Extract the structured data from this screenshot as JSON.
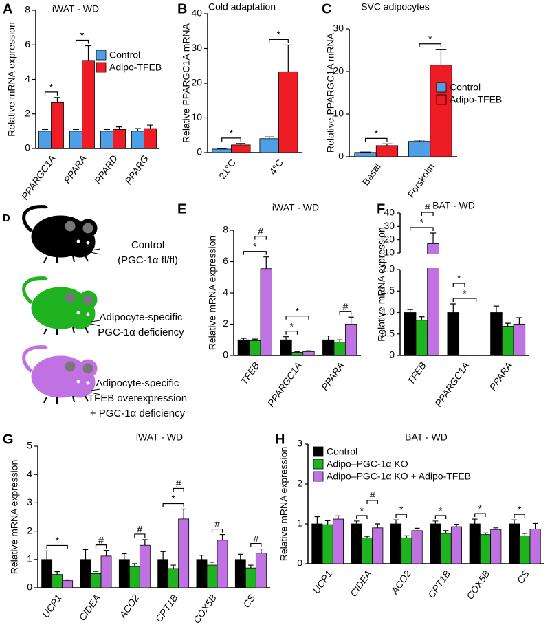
{
  "chart_data": [
    {
      "panel": "A",
      "type": "bar",
      "title": "iWAT - WD",
      "ylabel": "Relative mRNA expression",
      "categories": [
        "PPARGC1A",
        "PPARA",
        "PPARD",
        "PPARG"
      ],
      "xlabel_italic": true,
      "ylim": [
        0,
        8
      ],
      "yticks": [
        0,
        2,
        4,
        6,
        8
      ],
      "legend": "upper right",
      "series": [
        {
          "name": "Control",
          "color": "#4e9fe6",
          "values": [
            1.0,
            1.0,
            1.0,
            1.0
          ],
          "errors": [
            0.1,
            0.1,
            0.1,
            0.15
          ]
        },
        {
          "name": "Adipo-TFEB",
          "color": "#ee1c24",
          "values": [
            2.65,
            5.1,
            1.1,
            1.15
          ],
          "errors": [
            0.3,
            0.85,
            0.15,
            0.2
          ]
        }
      ],
      "annotations": [
        {
          "category": 0,
          "between": [
            0,
            1
          ],
          "label": "*"
        },
        {
          "category": 1,
          "between": [
            0,
            1
          ],
          "label": "*"
        }
      ]
    },
    {
      "panel": "B",
      "type": "bar",
      "title": "Cold adaptation",
      "ylabel": "Relative PPARGC1A mRNA",
      "categories": [
        "21°C",
        "4°C"
      ],
      "xlabel_italic": false,
      "ylim": [
        0,
        40
      ],
      "yticks": [
        0,
        10,
        20,
        30,
        40
      ],
      "series": [
        {
          "color": "#4e9fe6",
          "values": [
            1.0,
            4.0
          ],
          "errors": [
            0.2,
            0.5
          ]
        },
        {
          "color": "#ee1c24",
          "values": [
            2.2,
            23.3
          ],
          "errors": [
            0.4,
            7.7
          ]
        }
      ],
      "annotations": [
        {
          "category": 0,
          "between": [
            0,
            1
          ],
          "label": "*"
        },
        {
          "category": 1,
          "between": [
            0,
            1
          ],
          "label": "*"
        }
      ]
    },
    {
      "panel": "C",
      "type": "bar",
      "title": "SVC adipocytes",
      "ylabel": "Relative PPARGC1A mRNA",
      "categories": [
        "Basal",
        "Forskolin"
      ],
      "xlabel_italic": false,
      "ylim": [
        0,
        30
      ],
      "yticks": [
        0,
        10,
        20,
        30
      ],
      "legend": "center right",
      "series": [
        {
          "name": "Control",
          "color": "#4e9fe6",
          "values": [
            1.0,
            3.6
          ],
          "errors": [
            0.1,
            0.3
          ]
        },
        {
          "name": "Adipo-TFEB",
          "color": "#ee1c24",
          "values": [
            2.6,
            21.5
          ],
          "errors": [
            0.4,
            3.7
          ]
        }
      ],
      "annotations": [
        {
          "category": 0,
          "between": [
            0,
            1
          ],
          "label": "*"
        },
        {
          "category": 1,
          "between": [
            0,
            1
          ],
          "label": "*"
        }
      ]
    },
    {
      "panel": "E",
      "type": "bar",
      "title": "iWAT - WD",
      "ylabel": "Relative mRNA expression",
      "categories": [
        "TFEB",
        "PPARGC1A",
        "PPARA"
      ],
      "xlabel_italic": true,
      "ylim": [
        0,
        8
      ],
      "yticks": [
        0,
        2,
        4,
        6,
        8
      ],
      "series": [
        {
          "color": "#000000",
          "values": [
            1.0,
            1.0,
            1.0
          ],
          "errors": [
            0.1,
            0.2,
            0.25
          ]
        },
        {
          "color": "#1fb41f",
          "values": [
            0.95,
            0.2,
            0.85
          ],
          "errors": [
            0.1,
            0.05,
            0.15
          ]
        },
        {
          "color": "#c172e2",
          "values": [
            5.55,
            0.25,
            2.0
          ],
          "errors": [
            0.75,
            0.05,
            0.45
          ]
        }
      ],
      "annotations": [
        {
          "category": 0,
          "between": [
            0,
            2
          ],
          "label": "*"
        },
        {
          "category": 0,
          "between": [
            1,
            2
          ],
          "label": "#"
        },
        {
          "category": 1,
          "between": [
            0,
            1
          ],
          "label": "*"
        },
        {
          "category": 1,
          "between": [
            0,
            2
          ],
          "label": "*"
        },
        {
          "category": 2,
          "between": [
            1,
            2
          ],
          "label": "#"
        }
      ]
    },
    {
      "panel": "F",
      "type": "bar",
      "title": "BAT - WD",
      "ylabel": "Relative mRNA expression",
      "categories": [
        "TFEB",
        "PPARGC1A",
        "PPARA"
      ],
      "xlabel_italic": true,
      "ylim": [
        0,
        40
      ],
      "ybreak": [
        2,
        10
      ],
      "yticks": [
        0,
        0.5,
        {
          "value": 1,
          "label": "1.0"
        },
        1.5,
        {
          "value": 2,
          "label": "2.0"
        },
        10,
        20,
        30,
        40
      ],
      "series": [
        {
          "color": "#000000",
          "values": [
            1.0,
            1.0,
            1.0
          ],
          "errors": [
            0.07,
            0.2,
            0.15
          ]
        },
        {
          "color": "#1fb41f",
          "values": [
            0.82,
            0,
            0.68
          ],
          "errors": [
            0.08,
            0,
            0.07
          ]
        },
        {
          "color": "#c172e2",
          "values": [
            17,
            0,
            0.73
          ],
          "errors": [
            8,
            0,
            0.15
          ]
        }
      ],
      "annotations": [
        {
          "category": 0,
          "between": [
            0,
            2
          ],
          "label": "*"
        },
        {
          "category": 0,
          "between": [
            1,
            2
          ],
          "label": "#"
        },
        {
          "category": 1,
          "between": [
            0,
            2
          ],
          "label": "*"
        },
        {
          "category": 1,
          "between": [
            0,
            1
          ],
          "label": "*"
        }
      ]
    },
    {
      "panel": "G",
      "type": "bar",
      "title": "iWAT - WD",
      "ylabel": "Relative mRNA expression",
      "categories": [
        "UCP1",
        "CIDEA",
        "ACO2",
        "CPT1B",
        "COX5B",
        "CS"
      ],
      "xlabel_italic": true,
      "ylim": [
        0,
        5
      ],
      "yticks": [
        0,
        1,
        2,
        3,
        4,
        5
      ],
      "series": [
        {
          "color": "#000000",
          "values": [
            1.0,
            1.0,
            1.0,
            1.0,
            1.0,
            1.0
          ],
          "errors": [
            0.3,
            0.35,
            0.2,
            0.28,
            0.15,
            0.18
          ]
        },
        {
          "color": "#1fb41f",
          "values": [
            0.47,
            0.5,
            0.75,
            0.68,
            0.8,
            0.7
          ],
          "errors": [
            0.1,
            0.08,
            0.1,
            0.12,
            0.1,
            0.1
          ]
        },
        {
          "color": "#c172e2",
          "values": [
            0.25,
            1.12,
            1.5,
            2.43,
            1.68,
            1.22
          ],
          "errors": [
            0.03,
            0.2,
            0.2,
            0.35,
            0.2,
            0.15
          ]
        }
      ],
      "annotations": [
        {
          "category": 0,
          "between": [
            0,
            2
          ],
          "label": "*"
        },
        {
          "category": 1,
          "between": [
            1,
            2
          ],
          "label": "#"
        },
        {
          "category": 2,
          "between": [
            1,
            2
          ],
          "label": "#"
        },
        {
          "category": 3,
          "between": [
            0,
            2
          ],
          "label": "*"
        },
        {
          "category": 3,
          "between": [
            1,
            2
          ],
          "label": "#"
        },
        {
          "category": 4,
          "between": [
            1,
            2
          ],
          "label": "#"
        },
        {
          "category": 5,
          "between": [
            1,
            2
          ],
          "label": "#"
        }
      ]
    },
    {
      "panel": "H",
      "type": "bar",
      "title": "BAT - WD",
      "ylabel": "Relative mRNA expression",
      "categories": [
        "UCP1",
        "CIDEA",
        "ACO2",
        "CPT1B",
        "COX5B",
        "CS"
      ],
      "xlabel_italic": true,
      "ylim": [
        0,
        3
      ],
      "yticks": [
        0,
        1,
        2,
        3
      ],
      "legend": "upper left",
      "series": [
        {
          "name": "Control",
          "color": "#000000",
          "values": [
            1.0,
            1.0,
            1.0,
            1.0,
            1.0,
            1.0
          ],
          "errors": [
            0.18,
            0.07,
            0.1,
            0.07,
            0.12,
            0.1
          ]
        },
        {
          "name": "Adipo–PGC-1α KO",
          "color": "#1fb41f",
          "values": [
            0.98,
            0.65,
            0.65,
            0.76,
            0.73,
            0.7
          ],
          "errors": [
            0.1,
            0.04,
            0.05,
            0.07,
            0.04,
            0.06
          ]
        },
        {
          "name": "Adipo–PGC-1α KO + Adipo-TFEB",
          "color": "#c172e2",
          "values": [
            1.12,
            0.9,
            0.83,
            0.93,
            0.86,
            0.87
          ],
          "errors": [
            0.08,
            0.1,
            0.06,
            0.06,
            0.04,
            0.14
          ]
        }
      ],
      "annotations": [
        {
          "category": 1,
          "between": [
            0,
            1
          ],
          "label": "*"
        },
        {
          "category": 1,
          "between": [
            1,
            2
          ],
          "label": "#"
        },
        {
          "category": 2,
          "between": [
            0,
            1
          ],
          "label": "*"
        },
        {
          "category": 3,
          "between": [
            0,
            1
          ],
          "label": "*"
        },
        {
          "category": 4,
          "between": [
            0,
            1
          ],
          "label": "*"
        },
        {
          "category": 5,
          "between": [
            0,
            1
          ],
          "label": "*"
        }
      ]
    }
  ],
  "diagram": {
    "panel": "D",
    "items": [
      {
        "lines": [
          "Control",
          "(PGC-1α fl/fl)"
        ]
      },
      {
        "lines": [
          "Adipocyte-specific",
          "PGC-1α deficiency"
        ]
      },
      {
        "lines": [
          "Adipocyte-specific",
          "TFEB overexpression",
          "+ PGC-1α deficiency"
        ]
      }
    ]
  }
}
